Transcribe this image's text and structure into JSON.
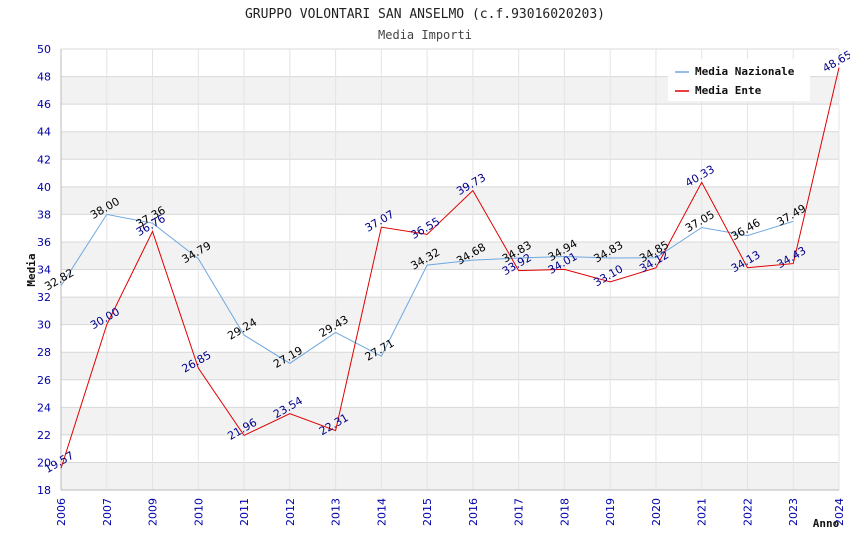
{
  "chart_data": {
    "type": "line",
    "title": "GRUPPO VOLONTARI SAN ANSELMO (c.f.93016020203)",
    "subtitle": "Media Importi",
    "xlabel": "Anno",
    "ylabel": "Media",
    "ylim": [
      18,
      50
    ],
    "yticks": [
      "18",
      "20",
      "22",
      "24",
      "26",
      "28",
      "30",
      "32",
      "34",
      "36",
      "38",
      "40",
      "42",
      "44",
      "46",
      "48",
      "50"
    ],
    "categories": [
      "2006",
      "2007",
      "2009",
      "2010",
      "2011",
      "2012",
      "2013",
      "2014",
      "2015",
      "2016",
      "2017",
      "2018",
      "2019",
      "2020",
      "2021",
      "2022",
      "2023",
      "2024"
    ],
    "legend_position": "top-right",
    "series": [
      {
        "name": "Media Nazionale",
        "color": "#6fa8e0",
        "label_color": "#000000",
        "values": [
          32.82,
          38.0,
          37.36,
          34.79,
          29.24,
          27.19,
          29.43,
          27.71,
          34.32,
          34.68,
          34.83,
          34.94,
          34.83,
          34.85,
          37.05,
          36.46,
          37.49,
          null
        ],
        "labels": [
          "32.82",
          "38.00",
          "37.36",
          "34.79",
          "29.24",
          "27.19",
          "29.43",
          "27.71",
          "34.32",
          "34.68",
          "34.83",
          "34.94",
          "34.83",
          "34.85",
          "37.05",
          "36.46",
          "37.49",
          ""
        ]
      },
      {
        "name": "Media Ente",
        "color": "#e00000",
        "label_color": "#00008b",
        "values": [
          19.57,
          30.0,
          36.76,
          26.85,
          21.96,
          23.54,
          22.31,
          37.07,
          36.55,
          39.73,
          33.92,
          34.01,
          33.1,
          34.12,
          40.33,
          34.13,
          34.43,
          48.65
        ],
        "labels": [
          "19.57",
          "30.00",
          "36.76",
          "26.85",
          "21.96",
          "23.54",
          "22.31",
          "37.07",
          "36.55",
          "39.73",
          "33.92",
          "34.01",
          "33.10",
          "34.12",
          "40.33",
          "34.13",
          "34.43",
          "48.65"
        ]
      }
    ]
  }
}
